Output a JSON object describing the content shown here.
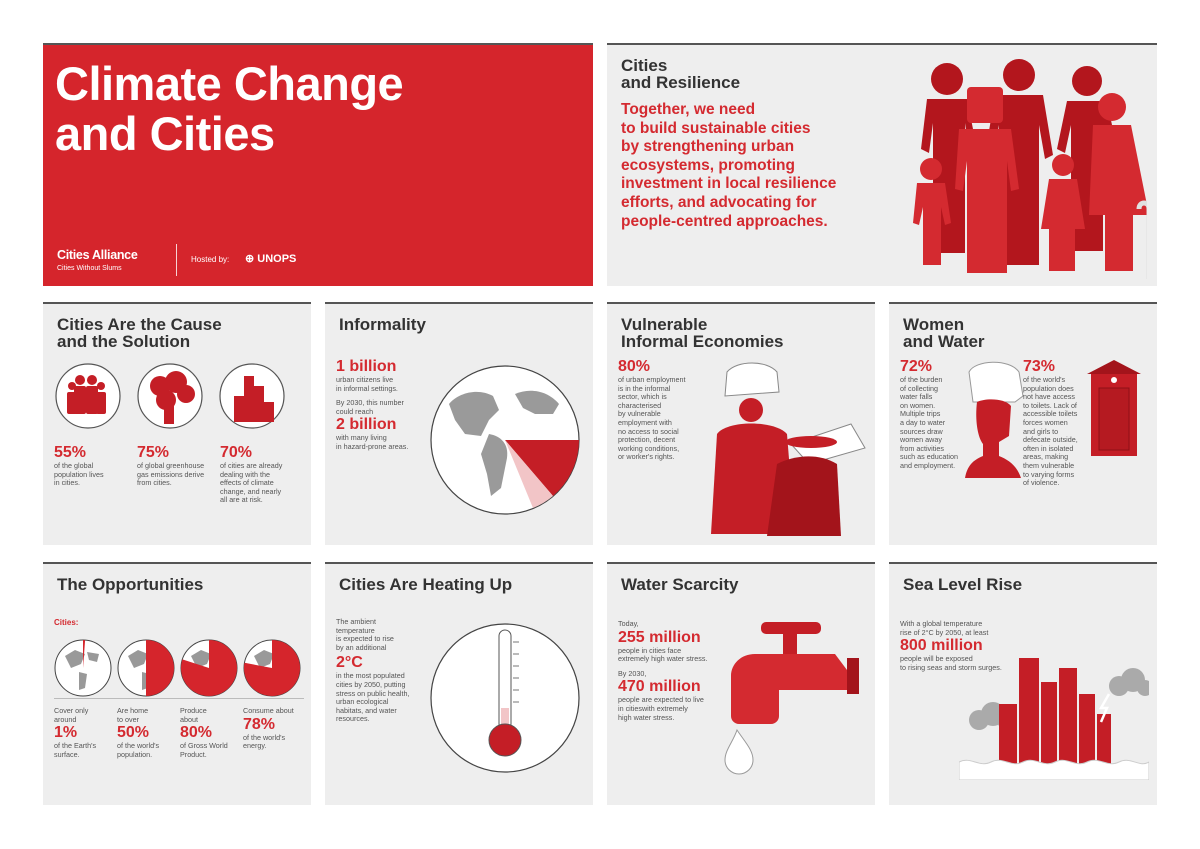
{
  "header": {
    "title": "Climate Change\nand Cities",
    "brand_name": "Cities Alliance",
    "brand_tagline": "Cities Without Slums",
    "hosted_label": "Hosted by:",
    "host_org": "UNOPS"
  },
  "resilience": {
    "title": "Cities\nand Resilience",
    "statement": "Together, we need\nto build sustainable cities\nby strengthening urban\necosystems, promoting\ninvestment in local resilience\nefforts, and advocating for\npeople-centred approaches."
  },
  "cause": {
    "title": "Cities Are the Cause\nand the Solution",
    "stats": [
      {
        "value": "55%",
        "text": "of the global\npopulation lives\nin cities."
      },
      {
        "value": "75%",
        "text": "of global greenhouse\ngas emissions derive\nfrom cities."
      },
      {
        "value": "70%",
        "text": "of cities are already\ndealing with the\neffects of climate\nchange, and nearly\nall are at risk."
      }
    ]
  },
  "informality": {
    "title": "Informality",
    "stat1_value": "1 billion",
    "stat1_text": "urban citizens live\nin informal settings.",
    "mid_text": "By 2030, this number\ncould reach",
    "stat2_value": "2 billion",
    "stat2_text": "with many living\nin hazard-prone areas."
  },
  "vulnerable": {
    "title": "Vulnerable\nInformal Economies",
    "stat_value": "80%",
    "stat_text": "of urban employment\nis in the informal\nsector, which is\ncharacterised\nby vulnerable\nemployment with\nno access to social\nprotection, decent\nworking conditions,\nor worker's rights."
  },
  "women": {
    "title": "Women\nand Water",
    "stat1_value": "72%",
    "stat1_text": "of the burden\nof collecting\nwater falls\non women.\nMultiple trips\na day to water\nsources draw\nwomen away\nfrom activities\nsuch as education\nand employment.",
    "stat2_value": "73%",
    "stat2_text": "of the world's\npopulation does\nnot have access\nto toilets. Lack of\naccessible toilets\nforces women\nand girls to\ndefecate outside,\noften in isolated\nareas, making\nthem vulnerable\nto varying forms\nof violence."
  },
  "opportunities": {
    "title": "The Opportunities",
    "label": "Cities:",
    "stats": [
      {
        "pre": "Cover only\naround",
        "value": "1%",
        "text": "of the Earth's\nsurface.",
        "share": 0.01
      },
      {
        "pre": "Are home\nto over",
        "value": "50%",
        "text": "of the world's\npopulation.",
        "share": 0.5
      },
      {
        "pre": "Produce\nabout",
        "value": "80%",
        "text": "of Gross World\nProduct.",
        "share": 0.8
      },
      {
        "pre": "Consume about",
        "value": "78%",
        "text": "of the world's\nenergy.",
        "share": 0.78
      }
    ]
  },
  "heating": {
    "title": "Cities Are Heating Up",
    "pre_text": "The ambient\ntemperature\nis expected to rise\nby an additional",
    "stat_value": "2°C",
    "post_text": "in the most populated\ncities by 2050, putting\nstress on public health,\nurban ecological\nhabitats, and water\nresources."
  },
  "scarcity": {
    "title": "Water Scarcity",
    "pre1": "Today,",
    "stat1_value": "255 million",
    "stat1_text": "people in cities face\nextremely high water stress.",
    "pre2": "By 2030,",
    "stat2_value": "470 million",
    "stat2_text": "people are expected to live\nin citieswith extremely\nhigh water stress."
  },
  "sea": {
    "title": "Sea Level Rise",
    "pre_text": "With a global temperature\nrise of 2°C by 2050, at least",
    "stat_value": "800 million",
    "stat_text": "people will be exposed\nto rising seas and storm surges."
  },
  "colors": {
    "accent": "#d5252c",
    "panel": "#eeeeee",
    "text": "#4a4a4a"
  }
}
